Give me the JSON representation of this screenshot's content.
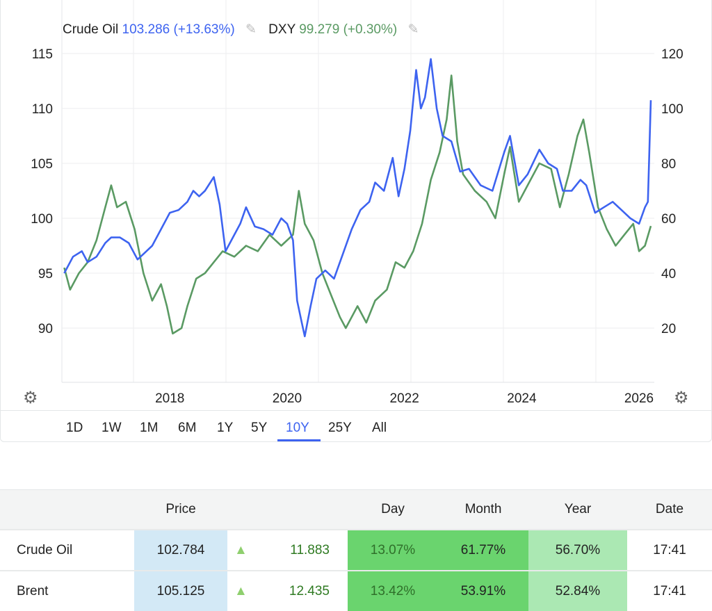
{
  "legend": {
    "series1_name": "Crude Oil",
    "series1_value": "103.286 (+13.63%)",
    "series2_name": "DXY",
    "series2_value": "99.279 (+0.30%)"
  },
  "ranges": [
    {
      "label": "1D"
    },
    {
      "label": "1W"
    },
    {
      "label": "1M"
    },
    {
      "label": "6M"
    },
    {
      "label": "1Y"
    },
    {
      "label": "5Y"
    },
    {
      "label": "10Y",
      "active": true
    },
    {
      "label": "25Y"
    },
    {
      "label": "All"
    }
  ],
  "chart_data": {
    "type": "line",
    "left_axis": {
      "ticks": [
        "115",
        "110",
        "105",
        "100",
        "95",
        "90"
      ],
      "range": [
        85,
        115
      ],
      "series": "DXY"
    },
    "right_axis": {
      "ticks": [
        "120",
        "100",
        "80",
        "60",
        "40",
        "20"
      ],
      "range": [
        0,
        120
      ],
      "series": "Crude Oil"
    },
    "x_ticks": [
      "2018",
      "2020",
      "2022",
      "2024",
      "2026"
    ],
    "xrange": [
      2016.16,
      2026.2
    ],
    "series": [
      {
        "name": "Crude Oil",
        "color": "#3d63f0",
        "axis": "right",
        "points": [
          [
            2016.2,
            40
          ],
          [
            2016.35,
            46
          ],
          [
            2016.5,
            48
          ],
          [
            2016.6,
            44
          ],
          [
            2016.75,
            46
          ],
          [
            2016.9,
            51
          ],
          [
            2017.0,
            53
          ],
          [
            2017.15,
            53
          ],
          [
            2017.3,
            51
          ],
          [
            2017.45,
            45
          ],
          [
            2017.55,
            47
          ],
          [
            2017.7,
            50
          ],
          [
            2017.85,
            56
          ],
          [
            2018.0,
            62
          ],
          [
            2018.15,
            63
          ],
          [
            2018.3,
            66
          ],
          [
            2018.4,
            70
          ],
          [
            2018.5,
            68
          ],
          [
            2018.6,
            70
          ],
          [
            2018.75,
            75
          ],
          [
            2018.85,
            65
          ],
          [
            2018.95,
            48
          ],
          [
            2019.05,
            52
          ],
          [
            2019.2,
            58
          ],
          [
            2019.3,
            64
          ],
          [
            2019.45,
            57
          ],
          [
            2019.6,
            56
          ],
          [
            2019.75,
            54
          ],
          [
            2019.9,
            60
          ],
          [
            2020.0,
            58
          ],
          [
            2020.1,
            52
          ],
          [
            2020.17,
            30
          ],
          [
            2020.25,
            22
          ],
          [
            2020.3,
            17
          ],
          [
            2020.4,
            28
          ],
          [
            2020.5,
            38
          ],
          [
            2020.65,
            41
          ],
          [
            2020.8,
            38
          ],
          [
            2020.95,
            47
          ],
          [
            2021.1,
            56
          ],
          [
            2021.25,
            63
          ],
          [
            2021.4,
            66
          ],
          [
            2021.5,
            73
          ],
          [
            2021.65,
            70
          ],
          [
            2021.8,
            82
          ],
          [
            2021.9,
            68
          ],
          [
            2022.0,
            78
          ],
          [
            2022.1,
            92
          ],
          [
            2022.2,
            114
          ],
          [
            2022.28,
            100
          ],
          [
            2022.35,
            104
          ],
          [
            2022.45,
            118
          ],
          [
            2022.55,
            100
          ],
          [
            2022.65,
            90
          ],
          [
            2022.8,
            88
          ],
          [
            2022.95,
            77
          ],
          [
            2023.1,
            78
          ],
          [
            2023.3,
            72
          ],
          [
            2023.5,
            70
          ],
          [
            2023.7,
            84
          ],
          [
            2023.8,
            90
          ],
          [
            2023.95,
            72
          ],
          [
            2024.1,
            76
          ],
          [
            2024.3,
            85
          ],
          [
            2024.45,
            80
          ],
          [
            2024.6,
            78
          ],
          [
            2024.7,
            70
          ],
          [
            2024.85,
            70
          ],
          [
            2025.0,
            74
          ],
          [
            2025.1,
            72
          ],
          [
            2025.25,
            62
          ],
          [
            2025.4,
            64
          ],
          [
            2025.55,
            66
          ],
          [
            2025.7,
            63
          ],
          [
            2025.85,
            60
          ],
          [
            2026.0,
            58
          ],
          [
            2026.1,
            64
          ],
          [
            2026.15,
            66
          ],
          [
            2026.2,
            103
          ]
        ]
      },
      {
        "name": "DXY",
        "color": "#5a9a63",
        "axis": "left",
        "points": [
          [
            2016.2,
            95.5
          ],
          [
            2016.3,
            93.5
          ],
          [
            2016.45,
            95
          ],
          [
            2016.6,
            96
          ],
          [
            2016.75,
            98
          ],
          [
            2016.9,
            101
          ],
          [
            2017.0,
            103
          ],
          [
            2017.1,
            101
          ],
          [
            2017.25,
            101.5
          ],
          [
            2017.4,
            99
          ],
          [
            2017.55,
            95
          ],
          [
            2017.7,
            92.5
          ],
          [
            2017.85,
            94
          ],
          [
            2017.95,
            92
          ],
          [
            2018.05,
            89.5
          ],
          [
            2018.2,
            90
          ],
          [
            2018.3,
            92
          ],
          [
            2018.45,
            94.5
          ],
          [
            2018.6,
            95
          ],
          [
            2018.75,
            96
          ],
          [
            2018.9,
            97
          ],
          [
            2019.1,
            96.5
          ],
          [
            2019.3,
            97.5
          ],
          [
            2019.5,
            97
          ],
          [
            2019.7,
            98.5
          ],
          [
            2019.9,
            97.5
          ],
          [
            2020.1,
            98.5
          ],
          [
            2020.2,
            102.5
          ],
          [
            2020.3,
            99.5
          ],
          [
            2020.45,
            98
          ],
          [
            2020.6,
            95
          ],
          [
            2020.75,
            93
          ],
          [
            2020.9,
            91
          ],
          [
            2021.0,
            90
          ],
          [
            2021.2,
            92
          ],
          [
            2021.35,
            90.5
          ],
          [
            2021.5,
            92.5
          ],
          [
            2021.7,
            93.5
          ],
          [
            2021.85,
            96
          ],
          [
            2022.0,
            95.5
          ],
          [
            2022.15,
            97
          ],
          [
            2022.3,
            99.5
          ],
          [
            2022.45,
            103.5
          ],
          [
            2022.6,
            106
          ],
          [
            2022.72,
            109
          ],
          [
            2022.8,
            113
          ],
          [
            2022.9,
            107
          ],
          [
            2023.0,
            104
          ],
          [
            2023.2,
            102.5
          ],
          [
            2023.4,
            101.5
          ],
          [
            2023.55,
            100
          ],
          [
            2023.7,
            104
          ],
          [
            2023.8,
            106.5
          ],
          [
            2023.95,
            101.5
          ],
          [
            2024.1,
            103
          ],
          [
            2024.3,
            105
          ],
          [
            2024.5,
            104.5
          ],
          [
            2024.65,
            101
          ],
          [
            2024.8,
            104
          ],
          [
            2024.95,
            107.5
          ],
          [
            2025.05,
            109
          ],
          [
            2025.15,
            106
          ],
          [
            2025.3,
            101
          ],
          [
            2025.45,
            99
          ],
          [
            2025.6,
            97.5
          ],
          [
            2025.75,
            98.5
          ],
          [
            2025.9,
            99.5
          ],
          [
            2026.0,
            97
          ],
          [
            2026.1,
            97.5
          ],
          [
            2026.2,
            99.3
          ]
        ]
      }
    ]
  },
  "table": {
    "headers": {
      "name": "",
      "price": "Price",
      "change": "",
      "day": "Day",
      "month": "Month",
      "year": "Year",
      "date": "Date"
    },
    "rows": [
      {
        "name": "Crude Oil",
        "price": "102.784",
        "arrow": "▲",
        "change": "11.883",
        "day": "13.07%",
        "month": "61.77%",
        "year": "56.70%",
        "date": "17:41"
      },
      {
        "name": "Brent",
        "price": "105.125",
        "arrow": "▲",
        "change": "12.435",
        "day": "13.42%",
        "month": "53.91%",
        "year": "52.84%",
        "date": "17:41"
      }
    ]
  }
}
